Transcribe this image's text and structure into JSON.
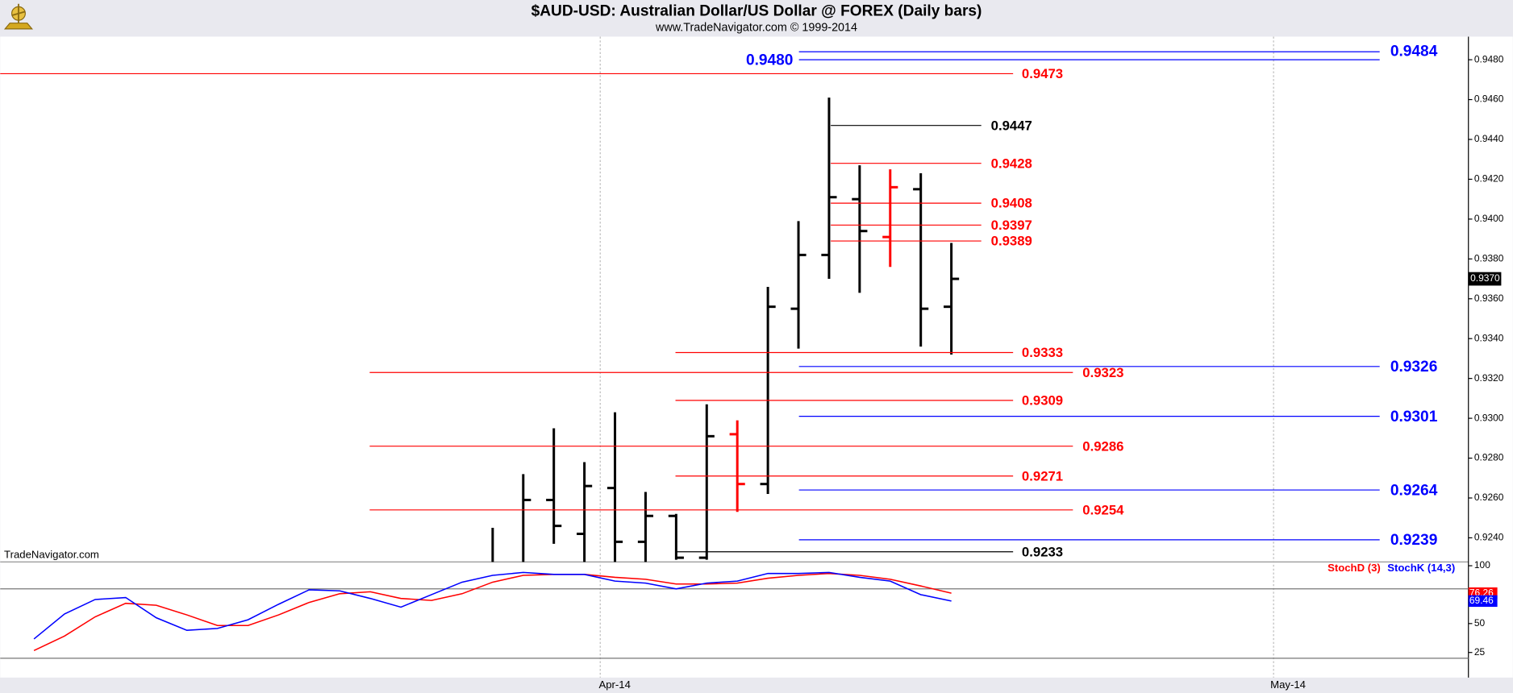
{
  "chart_data": {
    "type": "ohlc",
    "title": "$AUD-USD:  Australian Dollar/US Dollar @ FOREX  (Daily bars)",
    "subtitle": "www.TradeNavigator.com © 1999-2014",
    "watermark": "TradeNavigator.com",
    "x_labels": [
      "Apr-14",
      "May-14"
    ],
    "open": [
      null,
      null,
      null,
      null,
      null,
      null,
      null,
      null,
      null,
      null,
      null,
      null,
      null,
      null,
      null,
      null,
      null,
      0.9259,
      0.9242,
      0.9265,
      0.9238,
      0.9251,
      0.923,
      0.9292,
      0.9267,
      0.9355,
      0.9382,
      0.941,
      0.9391,
      0.9415,
      0.9356
    ],
    "high": [
      null,
      null,
      null,
      null,
      null,
      null,
      null,
      null,
      null,
      null,
      null,
      null,
      null,
      null,
      null,
      0.9245,
      0.9272,
      0.9295,
      0.9278,
      0.9303,
      0.9263,
      0.9252,
      0.9307,
      0.9299,
      0.9366,
      0.9399,
      0.9461,
      0.9427,
      0.9425,
      0.9423,
      0.9388
    ],
    "low": [
      null,
      null,
      null,
      null,
      null,
      null,
      null,
      null,
      null,
      null,
      null,
      null,
      null,
      null,
      null,
      0.9225,
      0.9225,
      0.9237,
      0.9225,
      0.9225,
      0.9225,
      0.9229,
      0.9229,
      0.9253,
      0.9262,
      0.9335,
      0.937,
      0.9363,
      0.9376,
      0.9336,
      0.9332
    ],
    "close": [
      null,
      null,
      null,
      null,
      null,
      null,
      null,
      null,
      null,
      null,
      null,
      null,
      null,
      null,
      null,
      null,
      0.9259,
      0.9246,
      0.9266,
      0.9238,
      0.9251,
      0.923,
      0.9291,
      0.9267,
      0.9356,
      0.9382,
      0.9411,
      0.9394,
      0.9416,
      0.9355,
      0.937
    ],
    "bar_colors": [
      "#000000",
      "#000000",
      "#000000",
      "#000000",
      "#000000",
      "#000000",
      "#000000",
      "#000000",
      "#000000",
      "#000000",
      "#000000",
      "#000000",
      "#000000",
      "#000000",
      "#000000",
      "#000000",
      "#000000",
      "#000000",
      "#000000",
      "#000000",
      "#000000",
      "#000000",
      "#000000",
      "#ff0000",
      "#000000",
      "#000000",
      "#000000",
      "#000000",
      "#ff0000",
      "#000000",
      "#000000"
    ],
    "last_price": 0.937,
    "last_price_label": "0.9370",
    "ylim": [
      0.92279,
      0.94916
    ],
    "yticks": [
      {
        "value": 0.924,
        "label": "0.9240"
      },
      {
        "value": 0.926,
        "label": "0.9260"
      },
      {
        "value": 0.928,
        "label": "0.9280"
      },
      {
        "value": 0.93,
        "label": "0.9300"
      },
      {
        "value": 0.932,
        "label": "0.9320"
      },
      {
        "value": 0.934,
        "label": "0.9340"
      },
      {
        "value": 0.936,
        "label": "0.9360"
      },
      {
        "value": 0.938,
        "label": "0.9380"
      },
      {
        "value": 0.94,
        "label": "0.9400"
      },
      {
        "value": 0.942,
        "label": "0.9420"
      },
      {
        "value": 0.944,
        "label": "0.9440"
      },
      {
        "value": 0.946,
        "label": "0.9460"
      },
      {
        "value": 0.948,
        "label": "0.9480"
      }
    ],
    "levels": {
      "values": [
        0.9484,
        0.948,
        0.9473,
        0.9447,
        0.9428,
        0.9408,
        0.9397,
        0.9389,
        0.9333,
        0.9326,
        0.9323,
        0.9309,
        0.9301,
        0.9286,
        0.9271,
        0.9264,
        0.9254,
        0.9239,
        0.9233
      ],
      "value_labels": [
        "0.9484",
        "0.9480",
        "0.9473",
        "0.9447",
        "0.9428",
        "0.9408",
        "0.9397",
        "0.9389",
        "0.9333",
        "0.9326",
        "0.9323",
        "0.9309",
        "0.9301",
        "0.9286",
        "0.9271",
        "0.9264",
        "0.9254",
        "0.9239",
        "0.9233"
      ],
      "colors": [
        "#0000ff",
        "#0000ff",
        "#ff0000",
        "#000000",
        "#ff0000",
        "#ff0000",
        "#ff0000",
        "#ff0000",
        "#ff0000",
        "#0000ff",
        "#ff0000",
        "#ff0000",
        "#0000ff",
        "#ff0000",
        "#ff0000",
        "#0000ff",
        "#ff0000",
        "#0000ff",
        "#000000"
      ]
    },
    "stoch": {
      "ylim": [
        3.3,
        103.3
      ],
      "yticks": [
        25,
        50,
        100
      ],
      "bands": [
        20,
        80
      ],
      "series": [
        {
          "name": "StochD (3)",
          "color": "#ff0000",
          "values": [
            26.7,
            39.2,
            55.8,
            67.5,
            65.8,
            57.5,
            48.3,
            48.3,
            57.5,
            68.3,
            75.8,
            77.5,
            71.7,
            70,
            75.8,
            85.8,
            91.7,
            92.5,
            92.5,
            90,
            88.3,
            84.2,
            84.2,
            85,
            89.2,
            91.7,
            93.3,
            91.7,
            88.3,
            82.5,
            76.26
          ]
        },
        {
          "name": "StochK (14,3)",
          "color": "#0000ff",
          "values": [
            36.7,
            58.3,
            70.8,
            72.5,
            55,
            44.2,
            45.8,
            53.3,
            66.7,
            79.2,
            78.3,
            71.7,
            64.2,
            75,
            85.8,
            91.7,
            94.2,
            92.5,
            92.5,
            86.7,
            85,
            80,
            85,
            86.7,
            93.3,
            93.3,
            94.2,
            90,
            86.7,
            75,
            69.46
          ]
        }
      ]
    }
  }
}
